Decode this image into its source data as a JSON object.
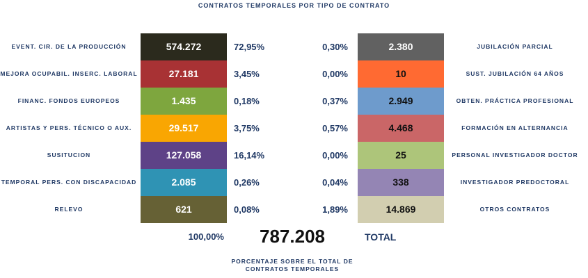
{
  "chart_data": {
    "type": "table",
    "title": "CONTRATOS TEMPORALES POR TIPO DE CONTRATO",
    "left": [
      {
        "label": "EVENT. CIR. DE LA PRODUCCIÓN",
        "value": "574.272",
        "pct": "72,95%",
        "color": "#2b2a1d"
      },
      {
        "label": "MEJORA OCUPABIL. INSERC. LABORAL",
        "value": "27.181",
        "pct": "3,45%",
        "color": "#a83234"
      },
      {
        "label": "FINANC. FONDOS EUROPEOS",
        "value": "1.435",
        "pct": "0,18%",
        "color": "#7ea63e"
      },
      {
        "label": "ARTISTAS Y PERS. TÉCNICO O AUX.",
        "value": "29.517",
        "pct": "3,75%",
        "color": "#f9a602"
      },
      {
        "label": "SUSITUCION",
        "value": "127.058",
        "pct": "16,14%",
        "color": "#5e4287"
      },
      {
        "label": "TEMPORAL PERS. CON DISCAPACIDAD",
        "value": "2.085",
        "pct": "0,26%",
        "color": "#2f93b4"
      },
      {
        "label": "RELEVO",
        "value": "621",
        "pct": "0,08%",
        "color": "#666135"
      }
    ],
    "right": [
      {
        "label": "JUBILACIÓN PARCIAL",
        "value": "2.380",
        "pct": "0,30%",
        "color": "#616161",
        "text_color": "#ffffff"
      },
      {
        "label": "SUST. JUBILACIÓN 64 AÑOS",
        "value": "10",
        "pct": "0,00%",
        "color": "#ff6a32",
        "text_color": "#111111"
      },
      {
        "label": "OBTEN. PRÁCTICA PROFESIONAL",
        "value": "2.949",
        "pct": "0,37%",
        "color": "#6e9bcc",
        "text_color": "#111111"
      },
      {
        "label": "FORMACIÓN EN ALTERNANCIA",
        "value": "4.468",
        "pct": "0,57%",
        "color": "#ca6667",
        "text_color": "#111111"
      },
      {
        "label": "PERSONAL INVESTIGADOR DOCTOR",
        "value": "25",
        "pct": "0,00%",
        "color": "#adc57a",
        "text_color": "#111111"
      },
      {
        "label": "INVESTIGADOR PREDOCTORAL",
        "value": "338",
        "pct": "0,04%",
        "color": "#9485b4",
        "text_color": "#111111"
      },
      {
        "label": "OTROS CONTRATOS",
        "value": "14.869",
        "pct": "1,89%",
        "color": "#d2ceb0",
        "text_color": "#111111"
      }
    ],
    "total_pct": "100,00%",
    "total_value": "787.208",
    "total_label": "TOTAL",
    "footnote_line1": "PORCENTAJE SOBRE EL TOTAL DE",
    "footnote_line2": "CONTRATOS TEMPORALES"
  }
}
